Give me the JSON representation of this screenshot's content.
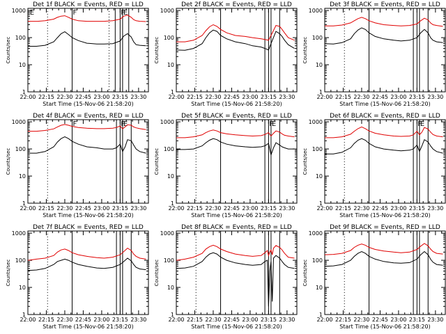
{
  "colors": {
    "events": "#000000",
    "lld": "#e00000",
    "background": "#ffffff",
    "axes": "#000000"
  },
  "panel_template": {
    "type": "line",
    "title_suffix": " BLACK = Events, RED = LLD",
    "xlabel": "Start Time (15-Nov-06 21:58:20)",
    "ylabel": "Counts/sec",
    "x_tick_labels": [
      "22:00",
      "22:15",
      "22:30",
      "22:45",
      "23:00",
      "23:15",
      "23:30"
    ],
    "x_tick_minutes": [
      0,
      15,
      30,
      45,
      60,
      75,
      90
    ],
    "xlim_minutes": [
      0,
      98
    ],
    "y_tick_labels": [
      "1",
      "10",
      "100",
      "1000"
    ],
    "ylim": [
      1,
      1200
    ],
    "yscale": "log",
    "flag_labels": {
      "E": "E",
      "F": "F"
    },
    "grid": false,
    "legend": "none"
  },
  "chart_data": [
    {
      "detector": "Det 1f",
      "events": {
        "x": [
          0,
          7,
          14,
          21,
          24,
          27,
          30,
          33,
          36,
          41,
          48,
          56,
          62,
          69,
          75,
          78,
          81,
          84,
          86,
          88,
          91,
          96
        ],
        "y": [
          48,
          48,
          52,
          70,
          100,
          140,
          165,
          130,
          100,
          78,
          62,
          58,
          58,
          60,
          75,
          115,
          140,
          105,
          70,
          55,
          52,
          50
        ]
      },
      "lld": {
        "x": [
          0,
          8,
          14,
          21,
          24,
          27,
          30,
          33,
          36,
          41,
          48,
          56,
          62,
          69,
          75,
          78,
          81,
          84,
          86,
          88,
          91,
          96
        ],
        "y": [
          400,
          400,
          420,
          480,
          560,
          620,
          640,
          560,
          480,
          420,
          400,
          400,
          400,
          420,
          480,
          620,
          680,
          560,
          460,
          420,
          400,
          390
        ]
      },
      "flags_E": [
        1,
        77
      ],
      "flags_F": [
        36,
        75
      ],
      "solid_lines": [
        36,
        71,
        75,
        77,
        82
      ],
      "dotted_lines": [
        16,
        66
      ]
    },
    {
      "detector": "Det 2f",
      "events": {
        "x": [
          0,
          7,
          14,
          21,
          24,
          27,
          30,
          33,
          36,
          41,
          48,
          56,
          62,
          69,
          72,
          75,
          77,
          81,
          84,
          86,
          88,
          91,
          96
        ],
        "y": [
          35,
          34,
          40,
          60,
          100,
          150,
          190,
          170,
          120,
          90,
          70,
          60,
          50,
          45,
          40,
          35,
          60,
          170,
          140,
          110,
          80,
          55,
          40
        ]
      },
      "lld": {
        "x": [
          0,
          7,
          14,
          21,
          24,
          27,
          30,
          33,
          36,
          41,
          48,
          56,
          62,
          69,
          72,
          75,
          77,
          81,
          84,
          86,
          88,
          91,
          96
        ],
        "y": [
          70,
          70,
          80,
          120,
          180,
          250,
          300,
          260,
          200,
          150,
          120,
          110,
          100,
          90,
          85,
          80,
          120,
          280,
          260,
          200,
          150,
          100,
          80
        ]
      },
      "flags_E": [],
      "flags_F": [],
      "solid_lines": [
        36,
        72,
        75,
        77,
        84
      ],
      "dotted_lines": [
        16
      ]
    },
    {
      "detector": "Det 3f",
      "events": {
        "x": [
          0,
          7,
          14,
          21,
          24,
          27,
          30,
          33,
          36,
          41,
          48,
          56,
          62,
          69,
          75,
          78,
          81,
          84,
          86,
          88,
          91,
          96
        ],
        "y": [
          60,
          58,
          65,
          90,
          140,
          190,
          230,
          200,
          150,
          110,
          90,
          80,
          75,
          80,
          100,
          150,
          200,
          150,
          100,
          80,
          70,
          65
        ]
      },
      "lld": {
        "x": [
          0,
          7,
          14,
          21,
          24,
          27,
          30,
          33,
          36,
          41,
          48,
          56,
          62,
          69,
          75,
          78,
          81,
          84,
          86,
          88,
          91,
          96
        ],
        "y": [
          270,
          270,
          290,
          350,
          420,
          500,
          560,
          500,
          420,
          350,
          300,
          280,
          270,
          280,
          320,
          420,
          520,
          450,
          350,
          300,
          280,
          260
        ]
      },
      "flags_E": [],
      "flags_F": [],
      "solid_lines": [
        36,
        72,
        75,
        77,
        84
      ],
      "dotted_lines": [
        16
      ]
    },
    {
      "detector": "Det 4f",
      "events": {
        "x": [
          0,
          7,
          14,
          21,
          24,
          27,
          30,
          33,
          36,
          41,
          48,
          56,
          62,
          69,
          72,
          75,
          77,
          79,
          81,
          84,
          86,
          88,
          91,
          96
        ],
        "y": [
          70,
          70,
          80,
          120,
          180,
          240,
          280,
          240,
          190,
          150,
          120,
          110,
          100,
          100,
          110,
          150,
          80,
          120,
          220,
          200,
          140,
          100,
          80,
          70
        ]
      },
      "lld": {
        "x": [
          0,
          7,
          14,
          21,
          24,
          27,
          30,
          33,
          36,
          41,
          48,
          56,
          62,
          69,
          72,
          75,
          77,
          79,
          81,
          84,
          86,
          88,
          91,
          96
        ],
        "y": [
          450,
          450,
          480,
          550,
          650,
          750,
          800,
          750,
          680,
          620,
          580,
          560,
          560,
          580,
          620,
          700,
          550,
          650,
          780,
          750,
          650,
          600,
          560,
          520
        ]
      },
      "flags_E": [
        77
      ],
      "flags_F": [
        36,
        75
      ],
      "solid_lines": [
        36,
        72,
        75,
        77,
        84
      ],
      "dotted_lines": [
        16
      ]
    },
    {
      "detector": "Det 5f",
      "events": {
        "x": [
          0,
          7,
          14,
          21,
          24,
          27,
          30,
          33,
          36,
          41,
          48,
          56,
          62,
          69,
          72,
          75,
          77,
          79,
          81,
          84,
          86,
          88,
          91,
          96
        ],
        "y": [
          95,
          95,
          100,
          130,
          170,
          210,
          240,
          220,
          180,
          150,
          130,
          120,
          115,
          120,
          130,
          160,
          60,
          110,
          170,
          140,
          120,
          110,
          100,
          100
        ]
      },
      "lld": {
        "x": [
          0,
          7,
          14,
          21,
          24,
          27,
          30,
          33,
          36,
          41,
          48,
          56,
          62,
          69,
          72,
          75,
          77,
          79,
          81,
          84,
          86,
          88,
          91,
          96
        ],
        "y": [
          260,
          260,
          280,
          330,
          400,
          460,
          500,
          460,
          400,
          360,
          330,
          310,
          300,
          310,
          340,
          400,
          300,
          380,
          460,
          420,
          360,
          320,
          300,
          280
        ]
      },
      "flags_E": [
        77
      ],
      "flags_F": [
        75
      ],
      "solid_lines": [
        36,
        72,
        75,
        77,
        84
      ],
      "dotted_lines": [
        16
      ]
    },
    {
      "detector": "Det 6f",
      "events": {
        "x": [
          0,
          7,
          14,
          21,
          24,
          27,
          30,
          33,
          36,
          41,
          48,
          56,
          62,
          69,
          72,
          75,
          77,
          79,
          81,
          84,
          86,
          88,
          91,
          96
        ],
        "y": [
          65,
          65,
          75,
          110,
          160,
          210,
          240,
          210,
          160,
          120,
          100,
          90,
          85,
          90,
          100,
          140,
          80,
          130,
          220,
          180,
          130,
          100,
          80,
          70
        ]
      },
      "lld": {
        "x": [
          0,
          7,
          14,
          21,
          24,
          27,
          30,
          33,
          36,
          41,
          48,
          56,
          62,
          69,
          72,
          75,
          77,
          79,
          81,
          84,
          86,
          88,
          91,
          96
        ],
        "y": [
          260,
          260,
          280,
          350,
          450,
          560,
          650,
          560,
          460,
          380,
          330,
          300,
          290,
          300,
          330,
          450,
          330,
          420,
          620,
          540,
          420,
          340,
          300,
          280
        ]
      },
      "flags_E": [
        77
      ],
      "flags_F": [
        75
      ],
      "solid_lines": [
        36,
        72,
        75,
        77,
        84
      ],
      "dotted_lines": [
        16
      ]
    },
    {
      "detector": "Det 7f",
      "events": {
        "x": [
          0,
          7,
          14,
          21,
          24,
          27,
          30,
          33,
          36,
          41,
          48,
          56,
          62,
          69,
          75,
          78,
          81,
          84,
          86,
          88,
          91,
          96
        ],
        "y": [
          42,
          44,
          50,
          70,
          90,
          100,
          110,
          100,
          85,
          70,
          60,
          52,
          50,
          55,
          70,
          90,
          120,
          95,
          70,
          55,
          48,
          45
        ]
      },
      "lld": {
        "x": [
          0,
          7,
          14,
          21,
          24,
          27,
          30,
          33,
          36,
          41,
          48,
          56,
          62,
          69,
          75,
          78,
          81,
          84,
          86,
          88,
          91,
          96
        ],
        "y": [
          100,
          110,
          120,
          150,
          200,
          240,
          260,
          230,
          190,
          160,
          140,
          125,
          120,
          130,
          160,
          210,
          280,
          230,
          170,
          140,
          120,
          110
        ]
      },
      "flags_E": [],
      "flags_F": [],
      "solid_lines": [
        36,
        72,
        75,
        77,
        84
      ],
      "dotted_lines": [
        16
      ]
    },
    {
      "detector": "Det 8f",
      "events": {
        "x": [
          0,
          7,
          14,
          21,
          24,
          27,
          30,
          33,
          36,
          41,
          48,
          56,
          62,
          69,
          72,
          74,
          75,
          76,
          77,
          78,
          79,
          81,
          84,
          86,
          88,
          91,
          96
        ],
        "y": [
          50,
          52,
          60,
          90,
          130,
          170,
          190,
          170,
          130,
          100,
          80,
          70,
          65,
          70,
          90,
          100,
          2,
          40,
          90,
          3,
          120,
          150,
          120,
          90,
          70,
          55,
          50
        ]
      },
      "lld": {
        "x": [
          0,
          7,
          14,
          21,
          24,
          27,
          30,
          33,
          36,
          41,
          48,
          56,
          62,
          69,
          72,
          74,
          75,
          76,
          77,
          78,
          79,
          81,
          84,
          86,
          88,
          91,
          96
        ],
        "y": [
          100,
          110,
          130,
          180,
          260,
          320,
          360,
          320,
          260,
          210,
          170,
          150,
          140,
          150,
          190,
          230,
          150,
          200,
          240,
          160,
          280,
          350,
          300,
          240,
          180,
          130,
          120
        ]
      },
      "flags_E": [],
      "flags_F": [],
      "solid_lines": [
        36,
        72,
        75,
        77,
        84
      ],
      "dotted_lines": [
        16
      ]
    },
    {
      "detector": "Det 9f",
      "events": {
        "x": [
          0,
          7,
          14,
          21,
          24,
          27,
          30,
          33,
          36,
          41,
          48,
          56,
          62,
          69,
          75,
          78,
          81,
          84,
          86,
          88,
          91,
          96
        ],
        "y": [
          60,
          62,
          70,
          100,
          140,
          180,
          210,
          180,
          140,
          110,
          90,
          80,
          78,
          82,
          110,
          160,
          210,
          160,
          110,
          85,
          70,
          65
        ]
      },
      "lld": {
        "x": [
          0,
          7,
          14,
          21,
          24,
          27,
          30,
          33,
          36,
          41,
          48,
          56,
          62,
          69,
          75,
          78,
          81,
          84,
          86,
          88,
          91,
          96
        ],
        "y": [
          160,
          165,
          180,
          230,
          300,
          360,
          400,
          360,
          300,
          250,
          220,
          200,
          190,
          200,
          250,
          330,
          420,
          340,
          260,
          210,
          180,
          170
        ]
      },
      "flags_E": [],
      "flags_F": [],
      "solid_lines": [
        36,
        72,
        75,
        77,
        84
      ],
      "dotted_lines": [
        16
      ]
    }
  ]
}
